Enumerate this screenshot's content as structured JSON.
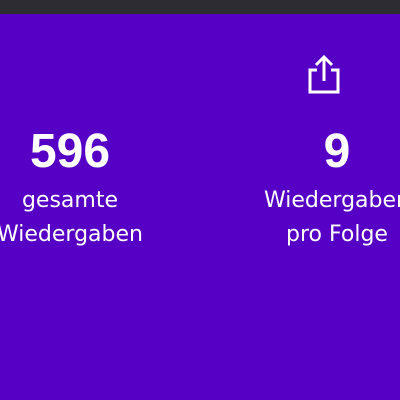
{
  "stats": [
    {
      "value": "596",
      "label_lines": [
        "gesamte",
        "Wiedergaben"
      ]
    },
    {
      "value": "9",
      "label_lines": [
        "Wiedergaben",
        "pro Folge"
      ]
    }
  ]
}
